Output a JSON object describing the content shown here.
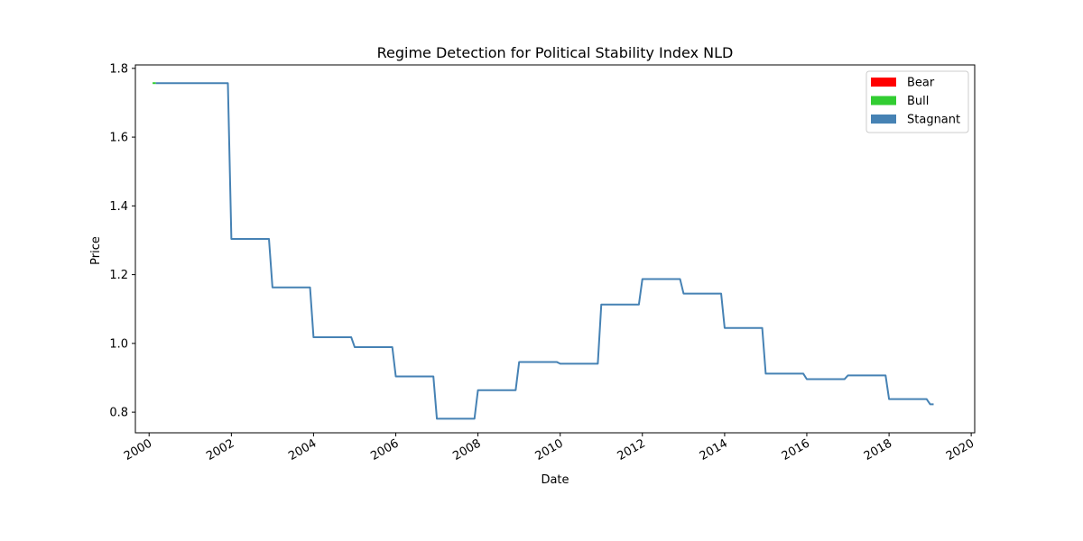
{
  "chart_data": {
    "type": "line",
    "title": "Regime Detection for Political Stability Index NLD",
    "xlabel": "Date",
    "ylabel": "Price",
    "x_range": [
      "1999-09-01",
      "2020-02-01"
    ],
    "ylim": [
      0.74,
      1.81
    ],
    "x_ticks": [
      "2000",
      "2002",
      "2004",
      "2006",
      "2008",
      "2010",
      "2012",
      "2014",
      "2016",
      "2018",
      "2020"
    ],
    "y_ticks": [
      "0.8",
      "1.0",
      "1.2",
      "1.4",
      "1.6",
      "1.8"
    ],
    "grid": false,
    "legend_position": "top-right",
    "legend": [
      {
        "name": "Bear",
        "color": "#ff0000"
      },
      {
        "name": "Bull",
        "color": "#32cd32"
      },
      {
        "name": "Stagnant",
        "color": "#4682b4"
      }
    ],
    "series": [
      {
        "name": "Bull",
        "color": "#32cd32",
        "points": [
          [
            "2000-02-01",
            1.757
          ],
          [
            "2000-03-01",
            1.757
          ]
        ]
      },
      {
        "name": "Stagnant",
        "color": "#4682b4",
        "points": [
          [
            "2000-03-01",
            1.757
          ],
          [
            "2001-12-01",
            1.757
          ],
          [
            "2002-01-01",
            1.304
          ],
          [
            "2002-12-01",
            1.304
          ],
          [
            "2003-01-01",
            1.163
          ],
          [
            "2003-12-01",
            1.163
          ],
          [
            "2004-01-01",
            1.018
          ],
          [
            "2004-12-01",
            1.018
          ],
          [
            "2005-01-01",
            0.989
          ],
          [
            "2005-12-01",
            0.989
          ],
          [
            "2006-01-01",
            0.904
          ],
          [
            "2006-12-01",
            0.904
          ],
          [
            "2007-01-01",
            0.781
          ],
          [
            "2007-12-01",
            0.781
          ],
          [
            "2008-01-01",
            0.864
          ],
          [
            "2008-12-01",
            0.864
          ],
          [
            "2009-01-01",
            0.946
          ],
          [
            "2009-12-01",
            0.946
          ],
          [
            "2010-01-01",
            0.941
          ],
          [
            "2010-12-01",
            0.941
          ],
          [
            "2011-01-01",
            1.113
          ],
          [
            "2011-12-01",
            1.113
          ],
          [
            "2012-01-01",
            1.187
          ],
          [
            "2012-12-01",
            1.187
          ],
          [
            "2013-01-01",
            1.145
          ],
          [
            "2013-12-01",
            1.145
          ],
          [
            "2014-01-01",
            1.045
          ],
          [
            "2014-12-01",
            1.045
          ],
          [
            "2015-01-01",
            0.912
          ],
          [
            "2015-12-01",
            0.912
          ],
          [
            "2016-01-01",
            0.896
          ],
          [
            "2016-12-01",
            0.896
          ],
          [
            "2017-01-01",
            0.907
          ],
          [
            "2017-12-01",
            0.907
          ],
          [
            "2018-01-01",
            0.838
          ],
          [
            "2018-12-01",
            0.838
          ],
          [
            "2019-01-01",
            0.823
          ],
          [
            "2019-02-01",
            0.823
          ]
        ]
      }
    ]
  }
}
